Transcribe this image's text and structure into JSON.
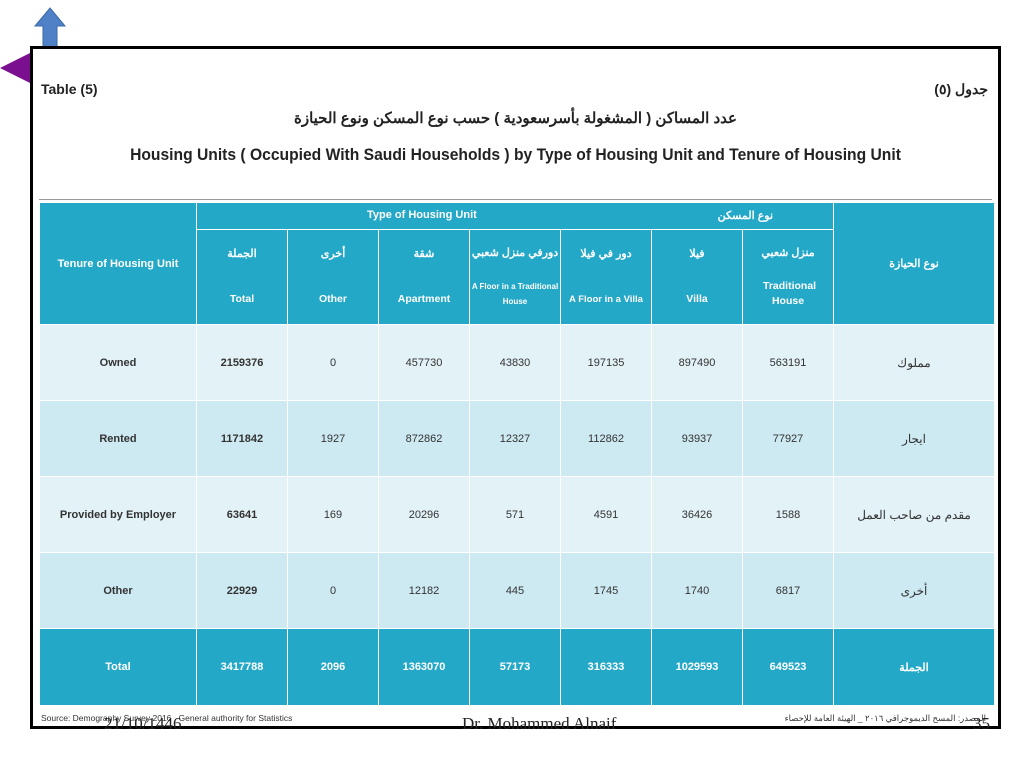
{
  "nav": {
    "up_icon": "up-arrow-icon",
    "back_icon": "left-arrow-icon",
    "up_color": "#4f81c7",
    "back_color": "#7a0f8f"
  },
  "slide": {
    "table_label_en": "Table (5)",
    "table_label_ar": "جدول (٥)",
    "title_ar": "عدد المساكن ( المشغولة بأسرسعودية ) حسب نوع المسكن ونوع الحيازة",
    "title_en": "Housing Units ( Occupied With Saudi Households ) by Type of Housing Unit and Tenure of Housing Unit",
    "source_en": "Source: Demography Survey 2016 , General authority for Statistics",
    "source_ar": "المصدر: المسح الديموجرافي ٢٠١٦ _ الهيئة العامة للإحصاء"
  },
  "table": {
    "header_color": "#24a8c8",
    "tenure_header_en": "Tenure of Housing Unit",
    "tenure_header_ar": "نوع الحيازة",
    "type_header_en": "Type of Housing Unit",
    "type_header_ar": "نوع المسكن",
    "columns": [
      {
        "ar": "الجملة",
        "en": "Total"
      },
      {
        "ar": "أخرى",
        "en": "Other"
      },
      {
        "ar": "شقة",
        "en": "Apartment"
      },
      {
        "ar": "دورفي منزل شعبي",
        "en": "A Floor in a Traditional House"
      },
      {
        "ar": "دور في فيلا",
        "en": "A Floor in a Villa"
      },
      {
        "ar": "فيلا",
        "en": "Villa"
      },
      {
        "ar": "منزل شعبي",
        "en": "Traditional House"
      }
    ],
    "rows": [
      {
        "en": "Owned",
        "ar": "مملوك",
        "values": [
          "2159376",
          "0",
          "457730",
          "43830",
          "197135",
          "897490",
          "563191"
        ]
      },
      {
        "en": "Rented",
        "ar": "ايجار",
        "values": [
          "1171842",
          "1927",
          "872862",
          "12327",
          "112862",
          "93937",
          "77927"
        ]
      },
      {
        "en": "Provided by Employer",
        "ar": "مقدم من صاحب العمل",
        "values": [
          "63641",
          "169",
          "20296",
          "571",
          "4591",
          "36426",
          "1588"
        ]
      },
      {
        "en": "Other",
        "ar": "أخرى",
        "values": [
          "22929",
          "0",
          "12182",
          "445",
          "1745",
          "1740",
          "6817"
        ]
      }
    ],
    "total": {
      "en": "Total",
      "ar": "الجملة",
      "values": [
        "3417788",
        "2096",
        "1363070",
        "57173",
        "316333",
        "1029593",
        "649523"
      ]
    }
  },
  "footer": {
    "date": "21/10/1446",
    "author": "Dr. Mohammed Alnaif",
    "page": "35"
  }
}
